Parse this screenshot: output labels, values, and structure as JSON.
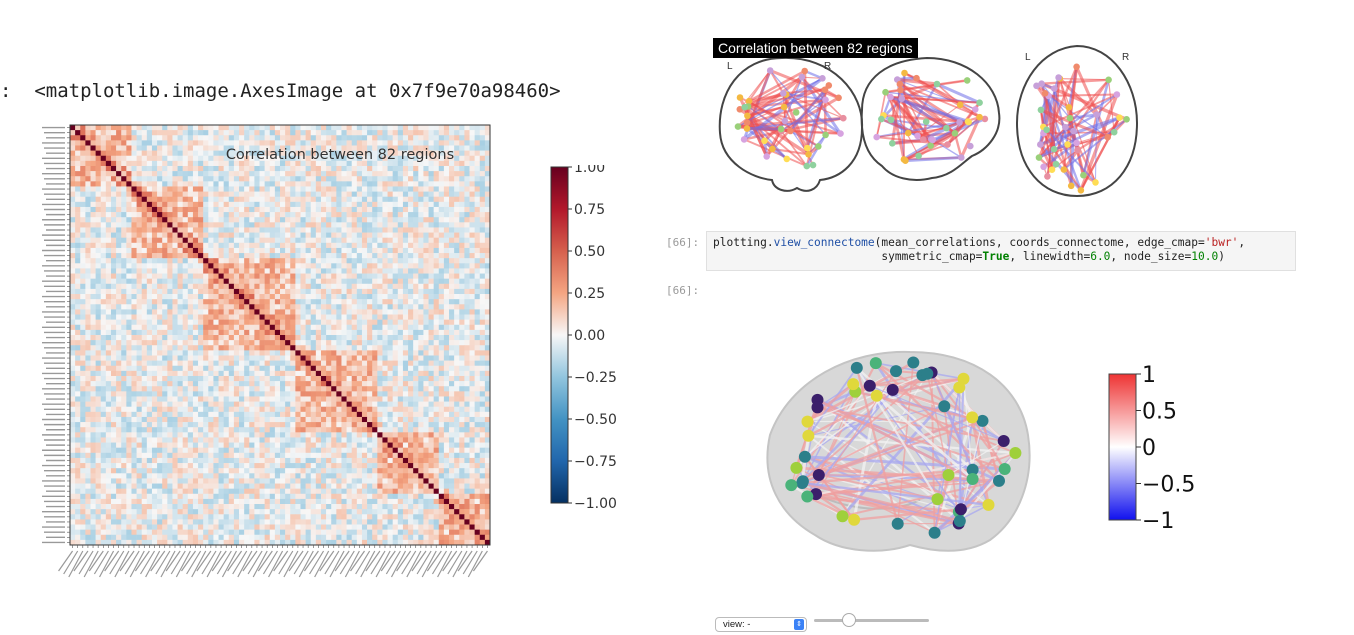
{
  "output_cell": {
    "prompt": ":",
    "text": "<matplotlib.image.AxesImage at 0x7f9e70a98460>"
  },
  "matrix_plot": {
    "title": "Correlation between 82 regions",
    "n_regions": 82,
    "colormap": "RdBu_r",
    "colorbar_ticks": [
      "1.00",
      "0.75",
      "0.50",
      "0.25",
      "0.00",
      "−0.25",
      "−0.50",
      "−0.75",
      "−1.00"
    ],
    "colorbar_range": [
      -1,
      1
    ]
  },
  "glass_brain": {
    "title": "Correlation between 82 regions",
    "label_L": "L",
    "label_R": "R",
    "label_L2": "L",
    "label_R2": "R"
  },
  "code_cell": {
    "prompt": "[66]:",
    "line1_a": "plotting.",
    "line1_fn": "view_connectome",
    "line1_b": "(mean_correlations, coords_connectome, edge_cmap=",
    "line1_str": "'bwr'",
    "line1_c": ",",
    "line2_indent": "                         symmetric_cmap=",
    "line2_kw": "True",
    "line2_a": ", linewidth=",
    "line2_n1": "6.0",
    "line2_b": ", node_size=",
    "line2_n2": "10.0",
    "line2_c": ")"
  },
  "out_prompt": "[66]:",
  "connectome_view": {
    "colorbar_ticks": [
      "1",
      "0.5",
      "0",
      "−0.5",
      "−1"
    ],
    "view_select": "view: -",
    "slider_value": 0.3
  },
  "colors": {
    "red": "#b2182b",
    "blue": "#2166ac",
    "diag": "#67001f"
  }
}
